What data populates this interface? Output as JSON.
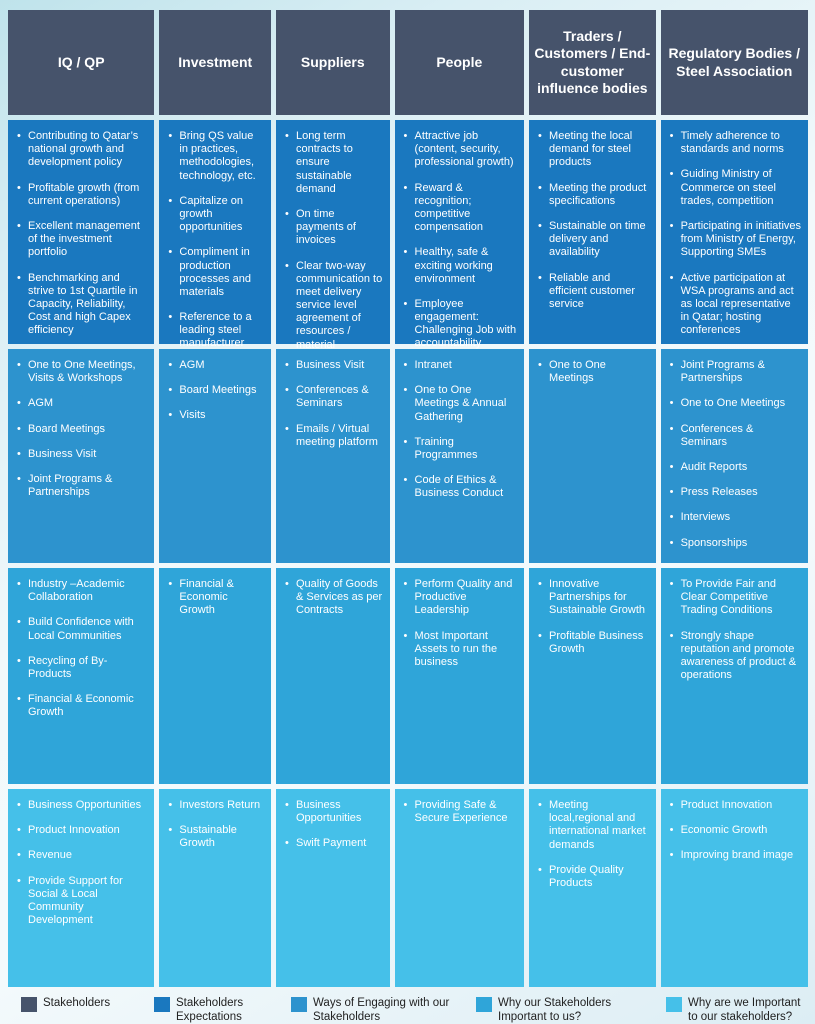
{
  "palette": {
    "header_bg": "#46536b",
    "row_colors": [
      "#1a78bf",
      "#2d93ce",
      "#2fa5d9",
      "#45c0e9"
    ],
    "cell_text": "#ffffff",
    "legend_text": "#222222",
    "background_top": "#bfe3eb",
    "background_mid": "#f2f9fb"
  },
  "row_keys": [
    "expectations",
    "engaging",
    "important_to_us",
    "we_important"
  ],
  "columns": [
    {
      "id": "iq-qp",
      "header": "IQ / QP",
      "rows": {
        "expectations": [
          "Contributing to Qatar’s national growth and development policy",
          "Profitable growth (from current operations)",
          "Excellent management of the investment portfolio",
          "Benchmarking and strive to 1st Quartile in Capacity, Reliability, Cost and high Capex efficiency"
        ],
        "engaging": [
          "One to One Meetings, Visits & Workshops",
          "AGM",
          "Board Meetings",
          "Business Visit",
          "Joint Programs & Partnerships"
        ],
        "important_to_us": [
          "Industry –Academic Collaboration",
          "Build Confidence with Local Communities",
          "Recycling of By-Products",
          "Financial & Economic Growth"
        ],
        "we_important": [
          "Business Opportunities",
          "Product Innovation",
          "Revenue",
          "Provide Support for Social & Local Community Development"
        ]
      }
    },
    {
      "id": "investment",
      "header": "Investment",
      "rows": {
        "expectations": [
          "Bring QS value in practices, methodologies, technology, etc.",
          "Capitalize on growth opportunities",
          "Compliment in production processes and materials",
          "Reference to a leading steel manufacturer"
        ],
        "engaging": [
          "AGM",
          "Board Meetings",
          "Visits"
        ],
        "important_to_us": [
          "Financial & Economic Growth"
        ],
        "we_important": [
          "Investors Return",
          "Sustainable Growth"
        ]
      }
    },
    {
      "id": "suppliers",
      "header": "Suppliers",
      "rows": {
        "expectations": [
          "Long term contracts to ensure sustainable demand",
          "On time payments of invoices",
          "Clear two-way communication to meet delivery service level agreement of resources / material"
        ],
        "engaging": [
          "Business Visit",
          "Conferences & Seminars",
          "Emails / Virtual meeting platform"
        ],
        "important_to_us": [
          "Quality of Goods & Services as per Contracts"
        ],
        "we_important": [
          "Business Opportunities",
          "Swift Payment"
        ]
      }
    },
    {
      "id": "people",
      "header": "People",
      "rows": {
        "expectations": [
          "Attractive job (content, security, professional growth)",
          "Reward & recognition; competitive compensation",
          "Healthy, safe & exciting working environment",
          "Employee engagement: Challenging Job with accountability"
        ],
        "engaging": [
          "Intranet",
          "One to One Meetings & Annual Gathering",
          "Training Programmes",
          "Code of Ethics & Business Conduct"
        ],
        "important_to_us": [
          "Perform Quality and Productive Leadership",
          "Most Important Assets to run the business"
        ],
        "we_important": [
          "Providing Safe & Secure Experience"
        ]
      }
    },
    {
      "id": "traders-customers",
      "header": "Traders / Customers / End-customer influence bodies",
      "rows": {
        "expectations": [
          "Meeting the local demand for steel products",
          "Meeting the product specifications",
          "Sustainable on time delivery and availability",
          "Reliable and efficient customer service"
        ],
        "engaging": [
          "One to One Meetings"
        ],
        "important_to_us": [
          "Innovative Partnerships for Sustainable Growth",
          "Profitable Business Growth"
        ],
        "we_important": [
          "Meeting local,regional and international market demands",
          "Provide Quality Products"
        ]
      }
    },
    {
      "id": "regulatory-bodies",
      "header": "Regulatory Bodies / Steel Association",
      "rows": {
        "expectations": [
          "Timely adherence to standards and norms",
          "Guiding Ministry of Commerce on steel trades, competition",
          "Participating in initiatives from Ministry of Energy, Supporting SMEs",
          "Active participation at WSA programs and act as local representative in Qatar; hosting conferences"
        ],
        "engaging": [
          "Joint Programs & Partnerships",
          "One to One Meetings",
          "Conferences & Seminars",
          "Audit Reports",
          "Press Releases",
          "Interviews",
          "Sponsorships"
        ],
        "important_to_us": [
          "To Provide Fair and Clear Competitive Trading Conditions",
          "Strongly shape reputation and promote awareness of product & operations"
        ],
        "we_important": [
          "Product Innovation",
          "Economic Growth",
          "Improving brand image"
        ]
      }
    }
  ],
  "legend": [
    {
      "label": "Stakeholders",
      "color": "#46536b"
    },
    {
      "label": "Stakeholders Expectations",
      "color": "#1a78bf"
    },
    {
      "label": "Ways of Engaging with our Stakeholders",
      "color": "#2d93ce"
    },
    {
      "label": "Why our Stakeholders Important to us?",
      "color": "#2fa5d9"
    },
    {
      "label": "Why are we Important to our stakeholders?",
      "color": "#45c0e9"
    }
  ]
}
